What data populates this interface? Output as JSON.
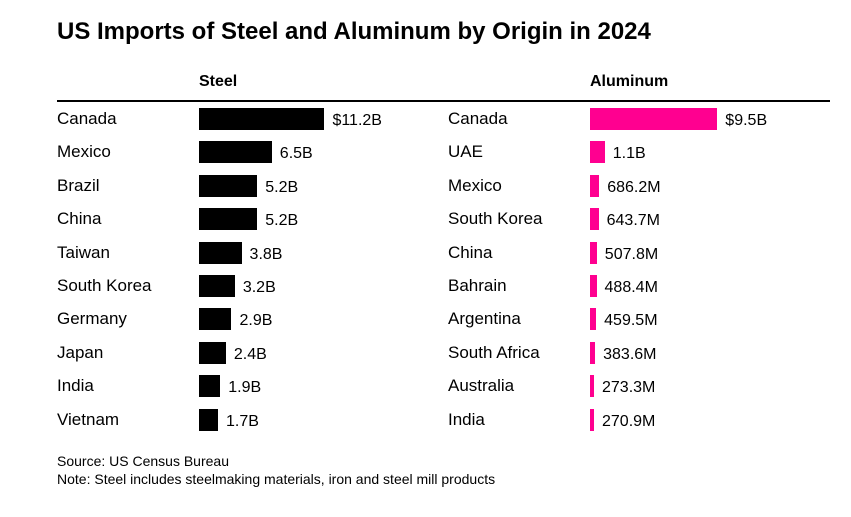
{
  "title": "US Imports of Steel and Aluminum by Origin in 2024",
  "footer": {
    "source": "Source: US Census Bureau",
    "note": "Note: Steel includes steelmaking materials, iron and steel mill products"
  },
  "chart_data": [
    {
      "type": "bar",
      "orientation": "horizontal",
      "title": "Steel",
      "unit": "USD",
      "color": "#000000",
      "categories": [
        "Canada",
        "Mexico",
        "Brazil",
        "China",
        "Taiwan",
        "South Korea",
        "Germany",
        "Japan",
        "India",
        "Vietnam"
      ],
      "values": [
        11.2,
        6.5,
        5.2,
        5.2,
        3.8,
        3.2,
        2.9,
        2.4,
        1.9,
        1.7
      ],
      "value_unit": "billions",
      "labels": [
        "$11.2B",
        "6.5B",
        "5.2B",
        "5.2B",
        "3.8B",
        "3.2B",
        "2.9B",
        "2.4B",
        "1.9B",
        "1.7B"
      ]
    },
    {
      "type": "bar",
      "orientation": "horizontal",
      "title": "Aluminum",
      "unit": "USD",
      "color": "#ff0090",
      "categories": [
        "Canada",
        "UAE",
        "Mexico",
        "South Korea",
        "China",
        "Bahrain",
        "Argentina",
        "South Africa",
        "Australia",
        "India"
      ],
      "values": [
        9.5,
        1.1,
        0.6862,
        0.6437,
        0.5078,
        0.4884,
        0.4595,
        0.3836,
        0.2733,
        0.2709
      ],
      "value_unit": "billions",
      "labels": [
        "$9.5B",
        "1.1B",
        "686.2M",
        "643.7M",
        "507.8M",
        "488.4M",
        "459.5M",
        "383.6M",
        "273.3M",
        "270.9M"
      ]
    }
  ]
}
